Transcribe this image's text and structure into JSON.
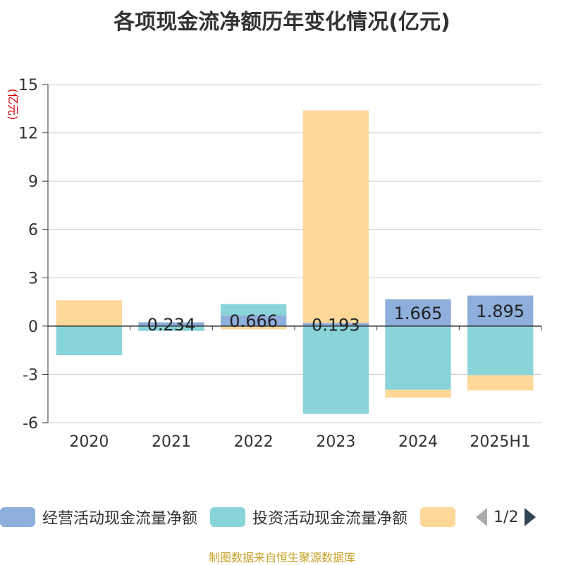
{
  "title": "各项现金流净额历年变化情况(亿元)",
  "y_unit": "(亿元)",
  "source": "制图数据来自恒生聚源数据库",
  "legend": {
    "items": [
      {
        "label": "经营活动现金流量净额",
        "color": "#8eaedb"
      },
      {
        "label": "投资活动现金流量净额",
        "color": "#88d4d8"
      },
      {
        "label": "",
        "color": "#fdd899"
      }
    ],
    "page": "1/2"
  },
  "chart_data": {
    "type": "bar",
    "stacked": true,
    "title": "各项现金流净额历年变化情况(亿元)",
    "ylabel": "(亿元)",
    "ylim": [
      -6,
      15
    ],
    "yticks": [
      -6,
      -3,
      0,
      3,
      6,
      9,
      12,
      15
    ],
    "grid": true,
    "legend_position": "bottom",
    "categories": [
      "2020",
      "2021",
      "2022",
      "2023",
      "2024",
      "2025H1"
    ],
    "series": [
      {
        "name": "经营活动现金流量净额",
        "color": "#8eaedb",
        "values": [
          0.0,
          0.234,
          0.666,
          0.193,
          1.665,
          1.895
        ],
        "labels": [
          "",
          "0.234",
          "0.666",
          "0.193",
          "1.665",
          "1.895"
        ]
      },
      {
        "name": "投资活动现金流量净额",
        "color": "#88d4d8",
        "values": [
          -1.8,
          -0.3,
          0.7,
          -5.45,
          -3.95,
          -3.05
        ]
      },
      {
        "color": "#fdd899",
        "values": [
          1.6,
          0.0,
          -0.2,
          13.2,
          -0.5,
          -0.95
        ]
      }
    ]
  }
}
